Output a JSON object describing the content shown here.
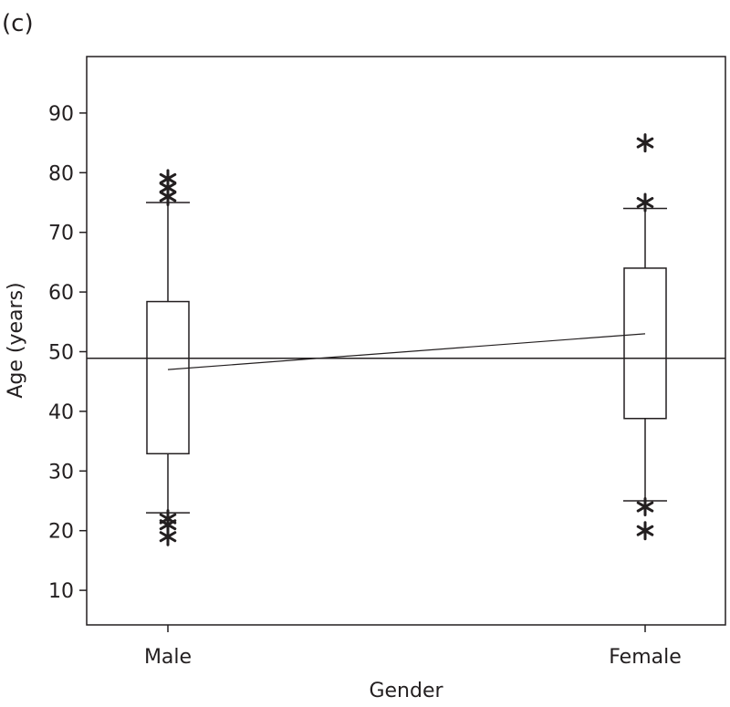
{
  "chart_data": {
    "type": "box",
    "panel_label": "(c)",
    "xlabel": "Gender",
    "ylabel": "Age (years)",
    "ylim": [
      4,
      99
    ],
    "yticks": [
      10,
      20,
      30,
      40,
      50,
      60,
      70,
      80,
      90
    ],
    "categories": [
      "Male",
      "Female"
    ],
    "reference_line": 48.9,
    "boxes": [
      {
        "name": "Male",
        "q1": 32.9,
        "q3": 58.4,
        "whisker_low": 23,
        "whisker_high": 75,
        "mean": 47,
        "outliers": [
          79,
          77.5,
          76,
          22,
          21,
          19
        ]
      },
      {
        "name": "Female",
        "q1": 38.8,
        "q3": 64,
        "whisker_low": 25,
        "whisker_high": 74,
        "mean": 53,
        "outliers": [
          85,
          75,
          24,
          20
        ]
      }
    ],
    "mean_connect_line": true,
    "grid": false
  }
}
